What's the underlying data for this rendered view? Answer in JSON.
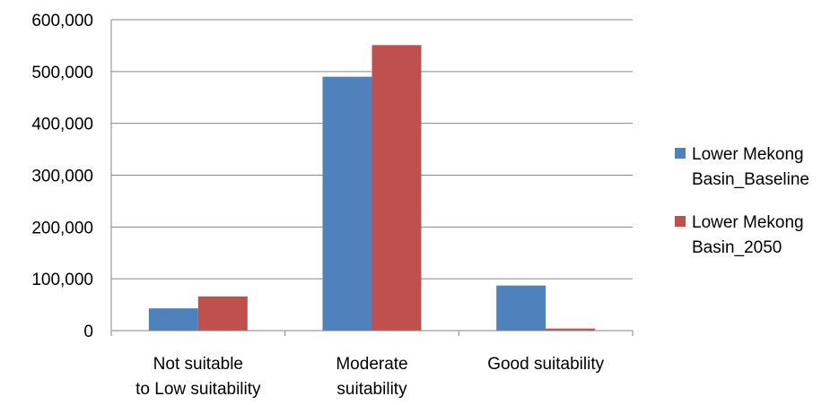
{
  "chart_data": {
    "type": "bar",
    "categories": [
      [
        "Not suitable",
        "to Low suitability"
      ],
      [
        "Moderate",
        "suitability"
      ],
      [
        "Good suitability"
      ]
    ],
    "series": [
      {
        "name": [
          "Lower Mekong",
          "Basin_Baseline"
        ],
        "color": "#4F81BD",
        "values": [
          43000,
          490000,
          87000
        ]
      },
      {
        "name": [
          "Lower Mekong",
          "Basin_2050"
        ],
        "color": "#C0504D",
        "values": [
          66000,
          551000,
          4000
        ]
      }
    ],
    "y_ticks": [
      "0",
      "100,000",
      "200,000",
      "300,000",
      "400,000",
      "500,000",
      "600,000"
    ],
    "ylim": [
      0,
      600000
    ],
    "title": "",
    "xlabel": "",
    "ylabel": "",
    "grid": true,
    "legend_position": "right"
  }
}
